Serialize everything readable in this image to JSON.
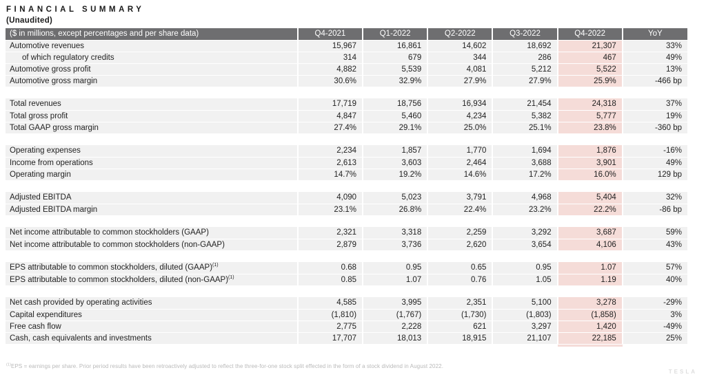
{
  "title": "FINANCIAL SUMMARY",
  "subtitle": "(Unaudited)",
  "watermark": "TESLA",
  "footnote": {
    "sup": "(1)",
    "text": "EPS = earnings per share. Prior period results have been retroactively adjusted to reflect the three-for-one stock split effected in the form of a stock dividend in August 2022."
  },
  "colors": {
    "header_bg": "#6e6e70",
    "header_text": "#ffffff",
    "row_bg": "#f1f1f1",
    "highlight_bg": "#f5dcd8",
    "body_text": "#1f1f1f",
    "footnote_text": "#b9b9b9",
    "watermark_text": "#dedede"
  },
  "chart_data": {
    "type": "table",
    "corner_label": "($ in millions, except percentages and per share data)",
    "columns": [
      "Q4-2021",
      "Q1-2022",
      "Q2-2022",
      "Q3-2022",
      "Q4-2022",
      "YoY"
    ],
    "highlight_column_index": 4,
    "sections": [
      {
        "rows": [
          {
            "label": "Automotive revenues",
            "values": [
              "15,967",
              "16,861",
              "14,602",
              "18,692",
              "21,307",
              "33%"
            ]
          },
          {
            "label": "of which regulatory credits",
            "indent": true,
            "values": [
              "314",
              "679",
              "344",
              "286",
              "467",
              "49%"
            ]
          },
          {
            "label": "Automotive gross profit",
            "values": [
              "4,882",
              "5,539",
              "4,081",
              "5,212",
              "5,522",
              "13%"
            ]
          },
          {
            "label": "Automotive gross margin",
            "values": [
              "30.6%",
              "32.9%",
              "27.9%",
              "27.9%",
              "25.9%",
              "-466 bp"
            ]
          }
        ]
      },
      {
        "rows": [
          {
            "label": "Total revenues",
            "values": [
              "17,719",
              "18,756",
              "16,934",
              "21,454",
              "24,318",
              "37%"
            ]
          },
          {
            "label": "Total gross profit",
            "values": [
              "4,847",
              "5,460",
              "4,234",
              "5,382",
              "5,777",
              "19%"
            ]
          },
          {
            "label": "Total GAAP gross margin",
            "values": [
              "27.4%",
              "29.1%",
              "25.0%",
              "25.1%",
              "23.8%",
              "-360 bp"
            ]
          }
        ]
      },
      {
        "rows": [
          {
            "label": "Operating expenses",
            "values": [
              "2,234",
              "1,857",
              "1,770",
              "1,694",
              "1,876",
              "-16%"
            ]
          },
          {
            "label": "Income from operations",
            "values": [
              "2,613",
              "3,603",
              "2,464",
              "3,688",
              "3,901",
              "49%"
            ]
          },
          {
            "label": "Operating margin",
            "values": [
              "14.7%",
              "19.2%",
              "14.6%",
              "17.2%",
              "16.0%",
              "129 bp"
            ]
          }
        ]
      },
      {
        "rows": [
          {
            "label": "Adjusted EBITDA",
            "values": [
              "4,090",
              "5,023",
              "3,791",
              "4,968",
              "5,404",
              "32%"
            ]
          },
          {
            "label": "Adjusted EBITDA margin",
            "values": [
              "23.1%",
              "26.8%",
              "22.4%",
              "23.2%",
              "22.2%",
              "-86 bp"
            ]
          }
        ]
      },
      {
        "rows": [
          {
            "label": "Net income attributable to common stockholders (GAAP)",
            "values": [
              "2,321",
              "3,318",
              "2,259",
              "3,292",
              "3,687",
              "59%"
            ]
          },
          {
            "label": "Net income attributable to common stockholders (non-GAAP)",
            "values": [
              "2,879",
              "3,736",
              "2,620",
              "3,654",
              "4,106",
              "43%"
            ]
          }
        ]
      },
      {
        "rows": [
          {
            "label": "EPS attributable to common stockholders, diluted (GAAP)",
            "sup": "(1)",
            "values": [
              "0.68",
              "0.95",
              "0.65",
              "0.95",
              "1.07",
              "57%"
            ]
          },
          {
            "label": "EPS attributable to common stockholders, diluted (non-GAAP)",
            "sup": "(1)",
            "values": [
              "0.85",
              "1.07",
              "0.76",
              "1.05",
              "1.19",
              "40%"
            ]
          }
        ]
      },
      {
        "rows": [
          {
            "label": "Net cash provided by operating activities",
            "values": [
              "4,585",
              "3,995",
              "2,351",
              "5,100",
              "3,278",
              "-29%"
            ]
          },
          {
            "label": "Capital expenditures",
            "values": [
              "(1,810)",
              "(1,767)",
              "(1,730)",
              "(1,803)",
              "(1,858)",
              "3%"
            ]
          },
          {
            "label": "Free cash flow",
            "values": [
              "2,775",
              "2,228",
              "621",
              "3,297",
              "1,420",
              "-49%"
            ]
          },
          {
            "label": "Cash, cash equivalents and investments",
            "values": [
              "17,707",
              "18,013",
              "18,915",
              "21,107",
              "22,185",
              "25%"
            ]
          }
        ]
      }
    ]
  }
}
